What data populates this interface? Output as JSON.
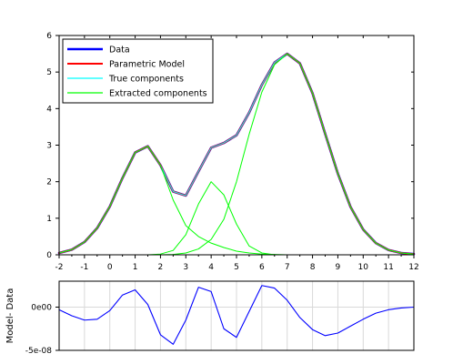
{
  "chart_data": [
    {
      "type": "line",
      "xlim": [
        -2,
        12
      ],
      "ylim": [
        0,
        6
      ],
      "xticks": [
        "-2",
        "-1",
        "0",
        "1",
        "2",
        "3",
        "4",
        "5",
        "6",
        "7",
        "8",
        "9",
        "10",
        "11",
        "12"
      ],
      "yticks": [
        "0",
        "1",
        "2",
        "3",
        "4",
        "5",
        "6"
      ],
      "grid": false,
      "legend_position": "top-left",
      "legend": [
        "Data",
        "Parametric Model",
        "True components",
        "Extracted components"
      ],
      "series": [
        {
          "name": "Data",
          "color": "#0000ff",
          "x": [
            -2,
            -1.5,
            -1,
            -0.5,
            0,
            0.5,
            1,
            1.5,
            2,
            2.5,
            3,
            3.5,
            4,
            4.5,
            5,
            5.5,
            6,
            6.5,
            7,
            7.5,
            8,
            8.5,
            9,
            9.5,
            10,
            10.5,
            11,
            11.5,
            12
          ],
          "y": [
            0.05,
            0.14,
            0.35,
            0.73,
            1.32,
            2.1,
            2.8,
            2.97,
            2.45,
            1.73,
            1.62,
            2.28,
            2.93,
            3.06,
            3.27,
            3.89,
            4.65,
            5.26,
            5.5,
            5.24,
            4.42,
            3.31,
            2.22,
            1.31,
            0.69,
            0.32,
            0.13,
            0.05,
            0.02
          ]
        },
        {
          "name": "Parametric Model",
          "color": "#ff0000",
          "x": [
            -2,
            -1.5,
            -1,
            -0.5,
            0,
            0.5,
            1,
            1.5,
            2,
            2.5,
            3,
            3.5,
            4,
            4.5,
            5,
            5.5,
            6,
            6.5,
            7,
            7.5,
            8,
            8.5,
            9,
            9.5,
            10,
            10.5,
            11,
            11.5,
            12
          ],
          "y": [
            0.05,
            0.14,
            0.35,
            0.73,
            1.32,
            2.1,
            2.8,
            2.97,
            2.45,
            1.73,
            1.62,
            2.28,
            2.93,
            3.06,
            3.27,
            3.89,
            4.65,
            5.26,
            5.5,
            5.24,
            4.42,
            3.31,
            2.22,
            1.31,
            0.69,
            0.32,
            0.13,
            0.05,
            0.02
          ]
        },
        {
          "name": "True components",
          "color": "#00ffff",
          "x": [
            -2,
            -1.5,
            -1,
            -0.5,
            0,
            0.5,
            1,
            1.5,
            2,
            2.5,
            3,
            3.5,
            4,
            4.5,
            5,
            5.5,
            6,
            6.5,
            7,
            7.5,
            8,
            8.5,
            9,
            9.5,
            10,
            10.5,
            11,
            11.5,
            12
          ],
          "y": [
            0.05,
            0.14,
            0.35,
            0.73,
            1.32,
            2.1,
            2.8,
            2.97,
            2.45,
            1.73,
            1.62,
            2.28,
            2.93,
            3.06,
            3.27,
            3.89,
            4.65,
            5.26,
            5.5,
            5.24,
            4.42,
            3.31,
            2.22,
            1.31,
            0.69,
            0.32,
            0.13,
            0.05,
            0.02
          ]
        },
        {
          "name": "Extracted components",
          "color": "#00ff00",
          "x": [
            -2,
            -1.5,
            -1,
            -0.5,
            0,
            0.5,
            1,
            1.5,
            2,
            2.5,
            3,
            3.5,
            4,
            4.5,
            5,
            5.5,
            6,
            6.5,
            7,
            7.5,
            8,
            8.5
          ],
          "y": [
            0.05,
            0.14,
            0.35,
            0.73,
            1.32,
            2.1,
            2.8,
            2.97,
            2.45,
            1.5,
            0.8,
            0.5,
            0.32,
            0.2,
            0.1,
            0.05,
            0.02,
            0.01,
            0,
            0,
            0,
            0
          ]
        },
        {
          "name": "Extracted components",
          "color": "#00ff00",
          "x": [
            1.5,
            2,
            2.5,
            3,
            3.5,
            4,
            4.5,
            5,
            5.5,
            6,
            6.5
          ],
          "y": [
            0,
            0.02,
            0.12,
            0.55,
            1.39,
            2.0,
            1.64,
            0.84,
            0.24,
            0.05,
            0
          ]
        },
        {
          "name": "Extracted components",
          "color": "#00ff00",
          "x": [
            2,
            2.5,
            3,
            3.5,
            4,
            4.5,
            5,
            5.5,
            6,
            6.5,
            7,
            7.5,
            8,
            8.5,
            9,
            9.5,
            10,
            10.5,
            11,
            11.5,
            12
          ],
          "y": [
            0,
            0.01,
            0.05,
            0.16,
            0.42,
            0.97,
            2.0,
            3.3,
            4.45,
            5.2,
            5.5,
            5.24,
            4.42,
            3.31,
            2.22,
            1.31,
            0.69,
            0.32,
            0.13,
            0.05,
            0.02
          ]
        }
      ]
    },
    {
      "type": "line",
      "ylabel": "Model- Data",
      "xlim": [
        -2,
        12
      ],
      "ylim": [
        -5e-08,
        3e-08
      ],
      "yticks": [
        "0e00",
        "-5e-08"
      ],
      "grid": true,
      "series": [
        {
          "color": "#0000ff",
          "x": [
            -2,
            -1.5,
            -1,
            -0.5,
            0,
            0.5,
            1,
            1.5,
            2,
            2.5,
            3,
            3.5,
            4,
            4.5,
            5,
            5.5,
            6,
            6.5,
            7,
            7.5,
            8,
            8.5,
            9,
            9.5,
            10,
            10.5,
            11,
            11.5,
            12
          ],
          "y": [
            -3e-09,
            -1e-08,
            -1.5e-08,
            -1.4e-08,
            -4e-09,
            1.4e-08,
            2e-08,
            3e-09,
            -3.2e-08,
            -4.3e-08,
            -1.5e-08,
            2.3e-08,
            1.8e-08,
            -2.5e-08,
            -3.5e-08,
            -5e-09,
            2.5e-08,
            2.2e-08,
            8e-09,
            -1.2e-08,
            -2.6e-08,
            -3.3e-08,
            -3e-08,
            -2.2e-08,
            -1.4e-08,
            -7e-09,
            -3e-09,
            -1e-09,
            0
          ]
        }
      ]
    }
  ]
}
